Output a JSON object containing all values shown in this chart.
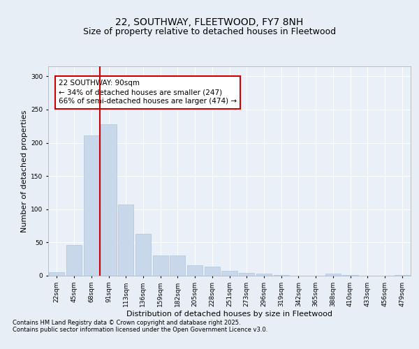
{
  "title_line1": "22, SOUTHWAY, FLEETWOOD, FY7 8NH",
  "title_line2": "Size of property relative to detached houses in Fleetwood",
  "xlabel": "Distribution of detached houses by size in Fleetwood",
  "ylabel": "Number of detached properties",
  "categories": [
    "22sqm",
    "45sqm",
    "68sqm",
    "91sqm",
    "113sqm",
    "136sqm",
    "159sqm",
    "182sqm",
    "205sqm",
    "228sqm",
    "251sqm",
    "273sqm",
    "296sqm",
    "319sqm",
    "342sqm",
    "365sqm",
    "388sqm",
    "410sqm",
    "433sqm",
    "456sqm",
    "479sqm"
  ],
  "values": [
    5,
    46,
    211,
    228,
    107,
    63,
    30,
    30,
    16,
    14,
    7,
    4,
    3,
    1,
    0,
    0,
    3,
    1,
    0,
    0,
    1
  ],
  "bar_color": "#c8d8ea",
  "bar_edge_color": "#b0c4d8",
  "vline_x_index": 3,
  "vline_color": "#cc0000",
  "annotation_text": "22 SOUTHWAY: 90sqm\n← 34% of detached houses are smaller (247)\n66% of semi-detached houses are larger (474) →",
  "annotation_box_color": "#cc0000",
  "ylim": [
    0,
    315
  ],
  "yticks": [
    0,
    50,
    100,
    150,
    200,
    250,
    300
  ],
  "bg_color": "#e8eef5",
  "plot_bg_color": "#eaf0f8",
  "grid_color": "#ffffff",
  "footer_line1": "Contains HM Land Registry data © Crown copyright and database right 2025.",
  "footer_line2": "Contains public sector information licensed under the Open Government Licence v3.0.",
  "title_fontsize": 10,
  "subtitle_fontsize": 9,
  "axis_label_fontsize": 8,
  "tick_fontsize": 6.5,
  "annotation_fontsize": 7.5,
  "footer_fontsize": 6
}
